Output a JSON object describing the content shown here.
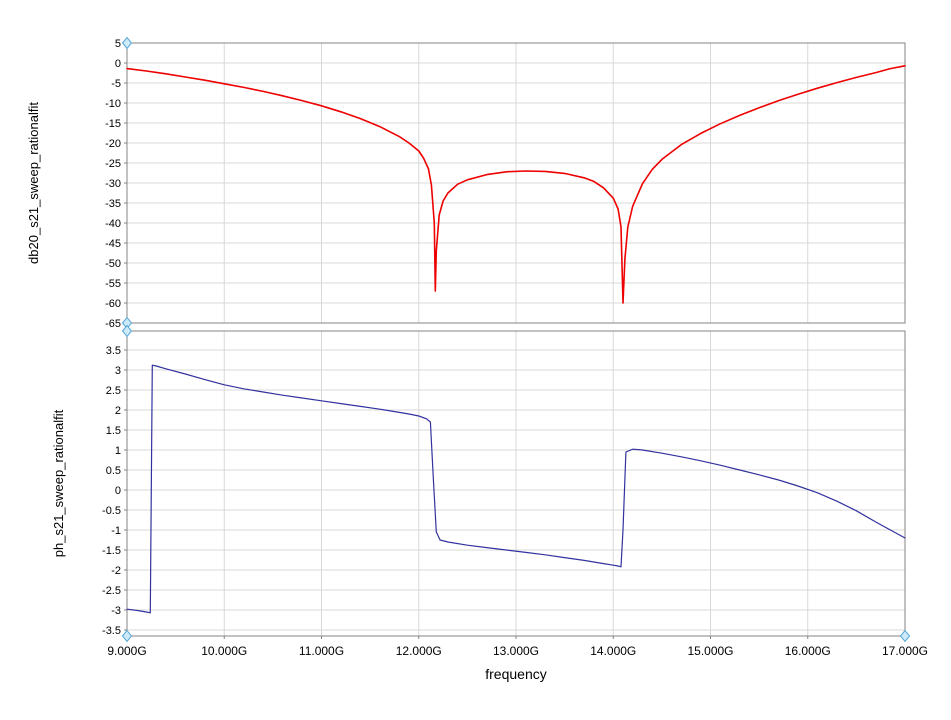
{
  "title": "",
  "x_axis": {
    "label": "frequency",
    "unit": "GHz",
    "xlim_ghz": [
      9,
      17
    ],
    "tick_labels": [
      "9.000G",
      "10.000G",
      "11.000G",
      "12.000G",
      "13.000G",
      "14.000G",
      "15.000G",
      "16.000G",
      "17.000G"
    ]
  },
  "style": {
    "background": "#ffffff",
    "grid_color": "#d8d8d8",
    "frame_color": "#848484",
    "text_color": "#000000",
    "axis_handle": {
      "name": "axis-handle-diamond",
      "fill": "#cdeaf8",
      "stroke": "#55a5d6"
    }
  },
  "chart_data": [
    {
      "type": "line",
      "title": "",
      "ylabel": "db20_s21_sweep_rationalfit",
      "xlabel": "",
      "ylim": [
        -65,
        5
      ],
      "ytick_step": 5,
      "ytick_labels": [
        "5",
        "0",
        "-5",
        "-10",
        "-15",
        "-20",
        "-25",
        "-30",
        "-35",
        "-40",
        "-45",
        "-50",
        "-55",
        "-60",
        "-65"
      ],
      "xlim": [
        9,
        17
      ],
      "grid": true,
      "legend": "none",
      "series": [
        {
          "name": "db20_s21_sweep_rationalfit",
          "color": "#ee0000",
          "width": 1.6,
          "x": [
            9.0,
            9.2,
            9.4,
            9.6,
            9.8,
            10.0,
            10.2,
            10.4,
            10.6,
            10.8,
            11.0,
            11.2,
            11.4,
            11.6,
            11.8,
            11.9,
            12.0,
            12.05,
            12.1,
            12.13,
            12.16,
            12.17,
            12.18,
            12.21,
            12.25,
            12.3,
            12.4,
            12.5,
            12.7,
            12.9,
            13.1,
            13.3,
            13.5,
            13.7,
            13.8,
            13.9,
            14.0,
            14.05,
            14.08,
            14.1,
            14.12,
            14.15,
            14.2,
            14.3,
            14.4,
            14.5,
            14.7,
            14.9,
            15.1,
            15.3,
            15.5,
            15.7,
            15.9,
            16.1,
            16.3,
            16.5,
            16.7,
            16.85,
            17.0
          ],
          "y": [
            -1.4,
            -2.0,
            -2.7,
            -3.5,
            -4.3,
            -5.2,
            -6.1,
            -7.1,
            -8.2,
            -9.4,
            -10.7,
            -12.2,
            -13.9,
            -15.9,
            -18.4,
            -20.0,
            -22.0,
            -23.8,
            -26.5,
            -30.5,
            -40.0,
            -57.0,
            -47.0,
            -38.0,
            -34.5,
            -32.5,
            -30.3,
            -29.2,
            -27.9,
            -27.2,
            -27.0,
            -27.1,
            -27.6,
            -28.7,
            -29.6,
            -31.2,
            -33.8,
            -36.5,
            -41.0,
            -60.0,
            -49.0,
            -41.0,
            -35.8,
            -30.2,
            -26.6,
            -24.1,
            -20.4,
            -17.6,
            -15.2,
            -13.1,
            -11.2,
            -9.4,
            -7.8,
            -6.3,
            -4.9,
            -3.6,
            -2.4,
            -1.4,
            -0.7
          ]
        }
      ]
    },
    {
      "type": "line",
      "title": "",
      "ylabel": "ph_s21_sweep_rationalfit",
      "xlabel": "frequency",
      "ylim": [
        -3.5,
        3.5
      ],
      "ytick_step": 0.5,
      "ytick_labels": [
        "3.5",
        "3",
        "2.5",
        "2",
        "1.5",
        "1",
        "0.5",
        "0",
        "-0.5",
        "-1",
        "-1.5",
        "-2",
        "-2.5",
        "-3",
        "-3.5"
      ],
      "xlim": [
        9,
        17
      ],
      "grid": true,
      "legend": "none",
      "series": [
        {
          "name": "ph_s21_sweep_rationalfit",
          "color": "#32329f",
          "width": 1.2,
          "x": [
            9.0,
            9.1,
            9.2,
            9.24,
            9.26,
            9.3,
            9.4,
            9.6,
            9.8,
            10.0,
            10.2,
            10.4,
            10.6,
            10.8,
            11.0,
            11.2,
            11.4,
            11.6,
            11.8,
            11.9,
            12.0,
            12.08,
            12.12,
            12.15,
            12.18,
            12.22,
            12.3,
            12.5,
            12.7,
            12.9,
            13.1,
            13.3,
            13.5,
            13.7,
            13.9,
            14.0,
            14.05,
            14.08,
            14.1,
            14.13,
            14.2,
            14.3,
            14.5,
            14.7,
            14.9,
            15.1,
            15.3,
            15.5,
            15.7,
            15.9,
            16.1,
            16.3,
            16.5,
            16.7,
            16.85,
            17.0
          ],
          "y": [
            -2.98,
            -3.01,
            -3.05,
            -3.07,
            3.12,
            3.1,
            3.03,
            2.9,
            2.76,
            2.63,
            2.53,
            2.45,
            2.37,
            2.3,
            2.23,
            2.16,
            2.09,
            2.02,
            1.94,
            1.9,
            1.85,
            1.78,
            1.7,
            0.3,
            -1.05,
            -1.25,
            -1.3,
            -1.38,
            -1.44,
            -1.5,
            -1.56,
            -1.62,
            -1.69,
            -1.76,
            -1.84,
            -1.88,
            -1.9,
            -1.92,
            -1.0,
            0.95,
            1.02,
            1.0,
            0.92,
            0.83,
            0.73,
            0.62,
            0.5,
            0.38,
            0.25,
            0.1,
            -0.07,
            -0.28,
            -0.52,
            -0.8,
            -1.0,
            -1.2
          ]
        }
      ]
    }
  ]
}
